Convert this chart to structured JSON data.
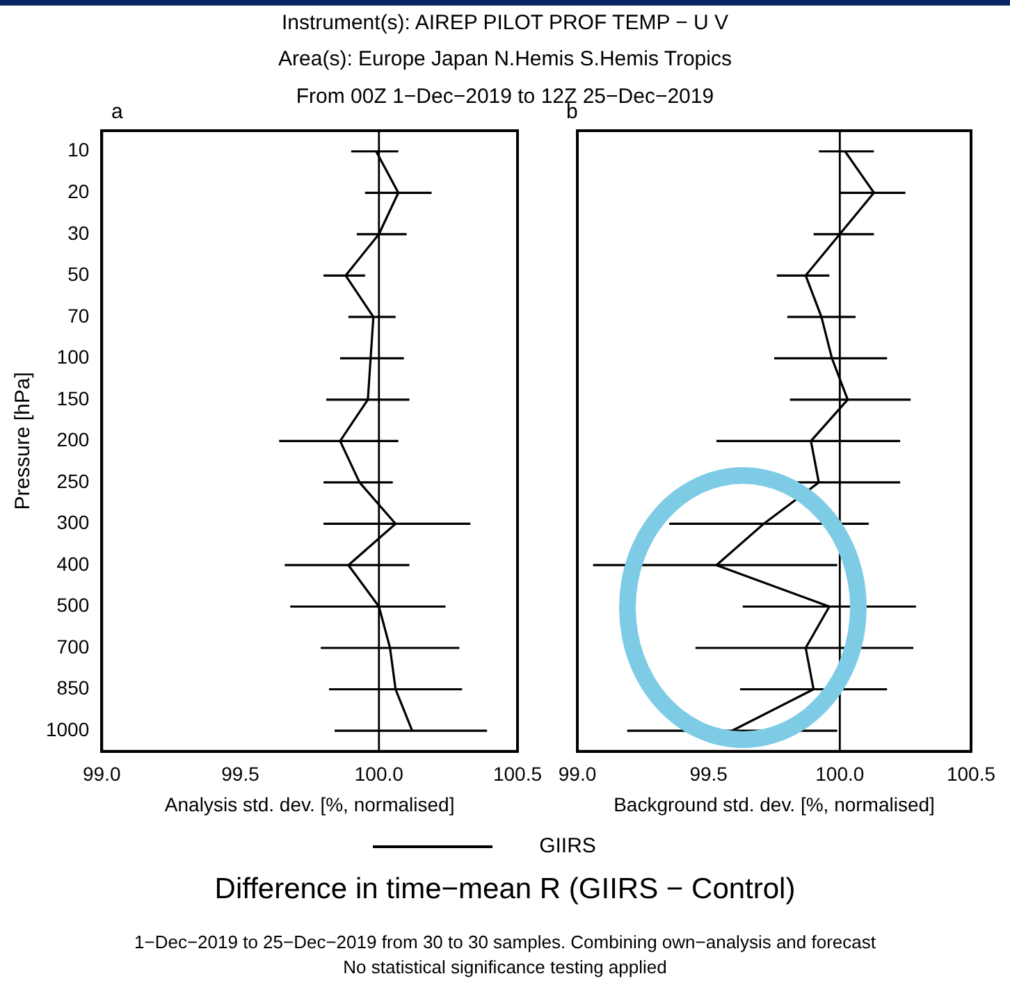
{
  "chart_data": [
    {
      "type": "line",
      "orientation": "horizontal",
      "title": "Instrument(s): AIREP PILOT PROF TEMP − U V",
      "subtitle": "Area(s): Europe Japan N.Hemis S.Hemis Tropics",
      "annotations": [
        "From 00Z  1−Dec−2019 to 12Z 25−Dec−2019",
        "a",
        "Difference in time−mean R (GIIRS − Control)",
        "1−Dec−2019 to 25−Dec−2019 from 30 to 30 samples. Combining own−analysis and forecast",
        "No statistical significance testing applied"
      ],
      "xlabel": "Analysis std. dev. [%, normalised]",
      "ylabel": "Pressure [hPa]",
      "categories": [
        "10",
        "20",
        "30",
        "50",
        "70",
        "100",
        "150",
        "200",
        "250",
        "300",
        "400",
        "500",
        "700",
        "850",
        "1000"
      ],
      "series": [
        {
          "name": "GIIRS",
          "color": "#000000",
          "values": [
            99.99,
            100.07,
            100.0,
            99.88,
            99.98,
            99.97,
            99.96,
            99.86,
            99.93,
            100.06,
            99.89,
            100.0,
            100.04,
            100.06,
            100.12
          ],
          "errors": [
            [
              99.9,
              100.07
            ],
            [
              99.95,
              100.19
            ],
            [
              99.92,
              100.1
            ],
            [
              99.8,
              99.95
            ],
            [
              99.89,
              100.06
            ],
            [
              99.86,
              100.09
            ],
            [
              99.81,
              100.11
            ],
            [
              99.64,
              100.07
            ],
            [
              99.8,
              100.05
            ],
            [
              99.8,
              100.33
            ],
            [
              99.66,
              100.11
            ],
            [
              99.68,
              100.24
            ],
            [
              99.79,
              100.29
            ],
            [
              99.82,
              100.3
            ],
            [
              99.84,
              100.39
            ]
          ]
        }
      ],
      "xlim": [
        99.0,
        100.5
      ],
      "xticks": [
        {
          "value": 99,
          "label": "99.0"
        },
        {
          "value": 99.5,
          "label": "99.5"
        },
        {
          "value": 100,
          "label": "100.0"
        },
        {
          "value": 100.5,
          "label": "100.5"
        }
      ],
      "ref_lines": [
        {
          "axis": "x",
          "value": 100,
          "color": "#000000"
        }
      ],
      "grid": false,
      "legend": "bottom",
      "marker": "none",
      "line_style": "solid"
    },
    {
      "type": "line",
      "orientation": "horizontal",
      "annotations": [
        "b"
      ],
      "xlabel": "Background std. dev. [%, normalised]",
      "categories": [
        "10",
        "20",
        "30",
        "50",
        "70",
        "100",
        "150",
        "200",
        "250",
        "300",
        "400",
        "500",
        "700",
        "850",
        "1000"
      ],
      "series": [
        {
          "color": "#000000",
          "values": [
            100.02,
            100.13,
            100.0,
            99.87,
            99.93,
            99.97,
            100.03,
            99.89,
            99.92,
            99.71,
            99.53,
            99.96,
            99.87,
            99.9,
            99.59
          ],
          "errors": [
            [
              99.92,
              100.13
            ],
            [
              100.0,
              100.25
            ],
            [
              99.9,
              100.13
            ],
            [
              99.76,
              99.96
            ],
            [
              99.8,
              100.06
            ],
            [
              99.75,
              100.18
            ],
            [
              99.81,
              100.27
            ],
            [
              99.53,
              100.23
            ],
            [
              99.83,
              100.23
            ],
            [
              99.35,
              100.11
            ],
            [
              99.06,
              99.99
            ],
            [
              99.63,
              100.29
            ],
            [
              99.45,
              100.28
            ],
            [
              99.62,
              100.18
            ],
            [
              99.19,
              99.99
            ]
          ]
        }
      ],
      "xlim": [
        99.0,
        100.5
      ],
      "xticks": [
        {
          "value": 99,
          "label": "99.0"
        },
        {
          "value": 99.5,
          "label": "99.5"
        },
        {
          "value": 100,
          "label": "100.0"
        },
        {
          "value": 100.5,
          "label": "100.5"
        }
      ],
      "ref_lines": [
        {
          "axis": "x",
          "value": 100,
          "color": "#000000"
        }
      ],
      "grid": false,
      "marker": "none",
      "line_style": "solid",
      "tick_labels": "x"
    }
  ]
}
